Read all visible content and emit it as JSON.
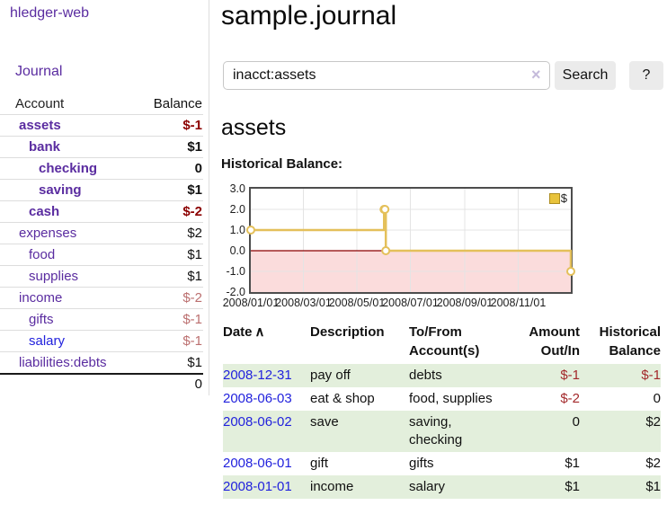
{
  "palette": {
    "purple": "#5a2ca0",
    "link_blue": "#2222dd",
    "neg_strong": "#8b0000",
    "neg_muted": "#bb6f6f",
    "neg_table": "#a3292b",
    "stripe_green": "#e3efdc",
    "button_bg": "#ebebeb",
    "divider": "#dddddd",
    "row_border": "#dddddd",
    "total_border": "#1a1a1a",
    "lavender": "#c5bbdb",
    "series": "#e4c05a",
    "series_fill": "#e8c33c",
    "series_edge": "#ad8d1f",
    "negative_fill": "#fbdcdc",
    "zero_line": "#8b0000",
    "grid": "#e4e4e4",
    "plot_border": "#4d4d4d"
  },
  "icons": {
    "sort_ascending": "∧",
    "clear_search": "×"
  },
  "sidebar": {
    "brand": "hledger-web",
    "journal_link": "Journal",
    "accounts": {
      "headers": {
        "account": "Account",
        "balance": "Balance"
      },
      "rows": [
        {
          "name": "assets",
          "balance": "$-1"
        },
        {
          "name": "bank",
          "balance": "$1"
        },
        {
          "name": "checking",
          "balance": "0"
        },
        {
          "name": "saving",
          "balance": "$1"
        },
        {
          "name": "cash",
          "balance": "$-2"
        },
        {
          "name": "expenses",
          "balance": "$2"
        },
        {
          "name": "food",
          "balance": "$1"
        },
        {
          "name": "supplies",
          "balance": "$1"
        },
        {
          "name": "income",
          "balance": "$-2"
        },
        {
          "name": "gifts",
          "balance": "$-1"
        },
        {
          "name": "salary",
          "balance": "$-1"
        },
        {
          "name": "liabilities:debts",
          "balance": "$1"
        }
      ],
      "total": "0"
    }
  },
  "main": {
    "title": "sample.journal",
    "search": {
      "value": "inacct:assets",
      "button_label": "Search",
      "help_label": "?"
    },
    "account_heading": "assets",
    "chart_heading": "Historical Balance:",
    "register_table": {
      "headers": [
        "Date",
        "Description",
        "To/From Account(s)",
        "Amount Out/In",
        "Historical Balance"
      ],
      "rows": [
        {
          "date": "2008-12-31",
          "description": "pay off",
          "accounts": "debts",
          "amount": "$-1",
          "balance": "$-1"
        },
        {
          "date": "2008-06-03",
          "description": "eat & shop",
          "accounts": "food, supplies",
          "amount": "$-2",
          "balance": "0"
        },
        {
          "date": "2008-06-02",
          "description": "save",
          "accounts": "saving, checking",
          "amount": "0",
          "balance": "$2"
        },
        {
          "date": "2008-06-01",
          "description": "gift",
          "accounts": "gifts",
          "amount": "$1",
          "balance": "$2"
        },
        {
          "date": "2008-01-01",
          "description": "income",
          "accounts": "salary",
          "amount": "$1",
          "balance": "$1"
        }
      ]
    }
  },
  "chart_data": {
    "type": "line",
    "title": "Historical Balance:",
    "step": true,
    "grid": true,
    "legend_position": "top-right",
    "xlim": [
      "2008-01-01",
      "2008-12-31"
    ],
    "ylim": [
      -2,
      3
    ],
    "x_ticks": [
      "2008/01/01",
      "2008/03/01",
      "2008/05/01",
      "2008/07/01",
      "2008/09/01",
      "2008/11/01"
    ],
    "y_ticks": [
      "3.0",
      "2.0",
      "1.0",
      "0.0",
      "-1.0",
      "-2.0"
    ],
    "series": [
      {
        "name": "$",
        "points": [
          [
            "2008-01-01",
            1
          ],
          [
            "2008-06-01",
            2
          ],
          [
            "2008-06-02",
            2
          ],
          [
            "2008-06-03",
            0
          ],
          [
            "2008-12-31",
            -1
          ]
        ]
      }
    ],
    "negative_region": true
  }
}
